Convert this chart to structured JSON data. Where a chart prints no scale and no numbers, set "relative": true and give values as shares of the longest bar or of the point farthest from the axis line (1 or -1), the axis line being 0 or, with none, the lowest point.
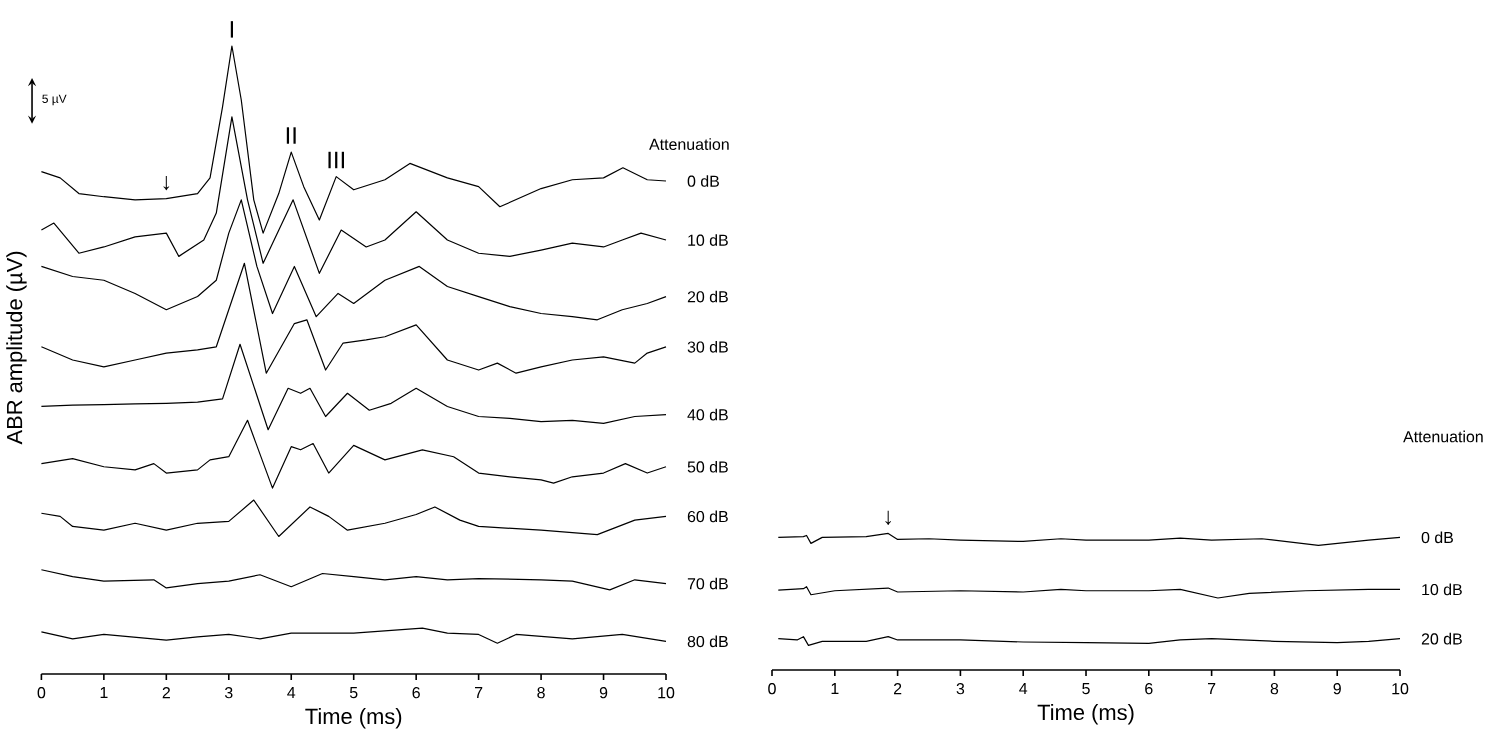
{
  "chart_data": [
    {
      "type": "line",
      "relative": true,
      "xlabel": "Time (ms)",
      "ylabel": "ABR amplitude (µV)",
      "legend_title": "Attenuation",
      "xlim": [
        0,
        10
      ],
      "xticks": [
        0,
        1,
        2,
        3,
        4,
        5,
        6,
        7,
        8,
        9,
        10
      ],
      "tick_labels": "x",
      "annotations": [
        {
          "text": "I",
          "x": 3.05,
          "y": 1.0
        },
        {
          "text": "II",
          "x": 4.0,
          "y": 0.831
        },
        {
          "text": "III",
          "x": 4.72,
          "y": 0.792
        },
        {
          "text": "↓",
          "x": 2.0,
          "y": 0.757
        },
        "5 µV"
      ],
      "series": [
        {
          "name": "0 dB",
          "color": "#000000",
          "x": [
            0,
            0.3,
            0.6,
            1,
            1.5,
            2,
            2.5,
            2.7,
            2.9,
            3.05,
            3.2,
            3.4,
            3.55,
            3.8,
            4.0,
            4.2,
            4.45,
            4.72,
            5.0,
            5.5,
            5.9,
            6.5,
            7.0,
            7.34,
            8.0,
            8.5,
            9.0,
            9.31,
            9.7,
            10
          ],
          "values": [
            0.8,
            0.79,
            0.765,
            0.76,
            0.755,
            0.757,
            0.765,
            0.79,
            0.903,
            1.0,
            0.914,
            0.755,
            0.702,
            0.765,
            0.831,
            0.776,
            0.723,
            0.792,
            0.771,
            0.787,
            0.813,
            0.79,
            0.776,
            0.744,
            0.773,
            0.787,
            0.79,
            0.806,
            0.787,
            0.785
          ]
        },
        {
          "name": "10 dB",
          "color": "#000000",
          "x": [
            0,
            0.2,
            0.6,
            1,
            1.5,
            2,
            2.2,
            2.6,
            2.8,
            3.05,
            3.3,
            3.55,
            4.03,
            4.45,
            4.8,
            5.2,
            5.5,
            6.0,
            6.5,
            7.0,
            7.5,
            8.0,
            8.5,
            9.0,
            9.3,
            9.6,
            10
          ],
          "values": [
            0.707,
            0.718,
            0.67,
            0.68,
            0.696,
            0.702,
            0.665,
            0.691,
            0.734,
            0.887,
            0.755,
            0.654,
            0.755,
            0.638,
            0.707,
            0.68,
            0.691,
            0.736,
            0.691,
            0.67,
            0.665,
            0.675,
            0.686,
            0.68,
            0.691,
            0.702,
            0.691
          ]
        },
        {
          "name": "20 dB",
          "color": "#000000",
          "x": [
            0,
            0.5,
            1,
            1.5,
            2,
            2.5,
            2.8,
            3.0,
            3.2,
            3.45,
            3.7,
            4.05,
            4.4,
            4.75,
            5.0,
            5.5,
            6.05,
            6.5,
            7.0,
            7.5,
            8.0,
            8.5,
            8.9,
            9.3,
            9.7,
            10
          ],
          "values": [
            0.649,
            0.633,
            0.627,
            0.606,
            0.58,
            0.601,
            0.627,
            0.702,
            0.755,
            0.649,
            0.574,
            0.649,
            0.569,
            0.606,
            0.59,
            0.627,
            0.649,
            0.617,
            0.601,
            0.585,
            0.574,
            0.569,
            0.564,
            0.58,
            0.59,
            0.601
          ]
        },
        {
          "name": "30 dB",
          "color": "#000000",
          "x": [
            0,
            0.5,
            1,
            1.5,
            2,
            2.5,
            2.8,
            3.25,
            3.6,
            4.05,
            4.25,
            4.55,
            4.83,
            5.2,
            5.5,
            6.0,
            6.5,
            7.0,
            7.3,
            7.6,
            8,
            8.5,
            9,
            9.5,
            9.7,
            10
          ],
          "values": [
            0.521,
            0.5,
            0.489,
            0.5,
            0.511,
            0.516,
            0.521,
            0.654,
            0.479,
            0.558,
            0.564,
            0.484,
            0.527,
            0.532,
            0.537,
            0.556,
            0.5,
            0.484,
            0.495,
            0.479,
            0.489,
            0.5,
            0.505,
            0.495,
            0.511,
            0.521
          ]
        },
        {
          "name": "40 dB",
          "color": "#000000",
          "x": [
            0,
            0.5,
            1,
            1.5,
            2,
            2.5,
            2.9,
            3.18,
            3.63,
            3.95,
            4.15,
            4.3,
            4.55,
            4.9,
            5.25,
            5.6,
            6.0,
            6.5,
            7.0,
            7.5,
            8,
            8.5,
            9,
            9.5,
            10
          ],
          "values": [
            0.426,
            0.428,
            0.429,
            0.43,
            0.431,
            0.433,
            0.438,
            0.525,
            0.389,
            0.455,
            0.447,
            0.455,
            0.41,
            0.447,
            0.42,
            0.431,
            0.455,
            0.426,
            0.41,
            0.407,
            0.402,
            0.404,
            0.399,
            0.41,
            0.413
          ]
        },
        {
          "name": "50 dB",
          "color": "#000000",
          "x": [
            0,
            0.5,
            1,
            1.5,
            1.8,
            2,
            2.5,
            2.7,
            3.0,
            3.3,
            3.7,
            4.0,
            4.15,
            4.35,
            4.6,
            5.0,
            5.5,
            6.1,
            6.6,
            7.0,
            7.5,
            8.0,
            8.2,
            8.5,
            9.0,
            9.35,
            9.7,
            10
          ],
          "values": [
            0.335,
            0.343,
            0.33,
            0.325,
            0.335,
            0.32,
            0.325,
            0.341,
            0.346,
            0.404,
            0.296,
            0.362,
            0.357,
            0.367,
            0.32,
            0.364,
            0.341,
            0.357,
            0.346,
            0.32,
            0.314,
            0.309,
            0.304,
            0.314,
            0.32,
            0.335,
            0.32,
            0.33
          ]
        },
        {
          "name": "60 dB",
          "color": "#000000",
          "x": [
            0,
            0.3,
            0.5,
            1,
            1.5,
            2,
            2.5,
            3.0,
            3.4,
            3.8,
            4.3,
            4.6,
            4.9,
            5.5,
            6.0,
            6.3,
            6.7,
            7,
            8,
            8.9,
            9.5,
            10
          ],
          "values": [
            0.256,
            0.251,
            0.235,
            0.229,
            0.24,
            0.229,
            0.24,
            0.243,
            0.277,
            0.219,
            0.266,
            0.251,
            0.229,
            0.24,
            0.254,
            0.266,
            0.245,
            0.235,
            0.229,
            0.222,
            0.245,
            0.251
          ]
        },
        {
          "name": "70 dB",
          "color": "#000000",
          "x": [
            0,
            0.5,
            1,
            1.8,
            2,
            2.5,
            3,
            3.5,
            4.0,
            4.5,
            5,
            5.5,
            6,
            6.5,
            7,
            8,
            8.5,
            9.1,
            9.5,
            10
          ],
          "values": [
            0.166,
            0.155,
            0.148,
            0.15,
            0.137,
            0.144,
            0.148,
            0.158,
            0.139,
            0.16,
            0.155,
            0.15,
            0.155,
            0.15,
            0.152,
            0.15,
            0.148,
            0.134,
            0.15,
            0.144
          ]
        },
        {
          "name": "80 dB",
          "color": "#000000",
          "x": [
            0,
            0.5,
            1,
            2,
            2.5,
            3,
            3.5,
            4.0,
            5,
            6.1,
            6.5,
            7,
            7.3,
            7.6,
            8.5,
            9.3,
            10
          ],
          "values": [
            0.067,
            0.056,
            0.063,
            0.054,
            0.059,
            0.063,
            0.056,
            0.065,
            0.065,
            0.073,
            0.065,
            0.063,
            0.049,
            0.063,
            0.056,
            0.063,
            0.052
          ]
        }
      ]
    },
    {
      "type": "line",
      "relative": true,
      "xlabel": "Time (ms)",
      "legend_title": "Attenuation",
      "xlim": [
        0,
        10
      ],
      "xticks": [
        0,
        1,
        2,
        3,
        4,
        5,
        6,
        7,
        8,
        9,
        10
      ],
      "tick_labels": "x",
      "annotations": [
        {
          "text": "↓",
          "x": 1.85,
          "y": 1.0
        }
      ],
      "series": [
        {
          "name": "0 dB",
          "color": "#000000",
          "x": [
            0.1,
            0.5,
            0.55,
            0.62,
            0.8,
            1.5,
            1.85,
            2.0,
            2.5,
            3,
            4,
            4.6,
            5,
            6,
            6.5,
            7,
            7.8,
            8.7,
            9.5,
            10
          ],
          "values": [
            0.971,
            0.976,
            0.985,
            0.927,
            0.971,
            0.976,
            1.0,
            0.956,
            0.961,
            0.951,
            0.941,
            0.961,
            0.951,
            0.951,
            0.966,
            0.951,
            0.961,
            0.912,
            0.951,
            0.971
          ]
        },
        {
          "name": "10 dB",
          "color": "#000000",
          "x": [
            0.1,
            0.5,
            0.55,
            0.62,
            1,
            1.85,
            2,
            3,
            4,
            4.6,
            5,
            6,
            6.5,
            7.1,
            7.6,
            8.5,
            9.5,
            10
          ],
          "values": [
            0.585,
            0.595,
            0.61,
            0.551,
            0.58,
            0.6,
            0.571,
            0.58,
            0.571,
            0.59,
            0.58,
            0.58,
            0.59,
            0.527,
            0.561,
            0.58,
            0.59,
            0.59
          ]
        },
        {
          "name": "20 dB",
          "color": "#000000",
          "x": [
            0.1,
            0.4,
            0.5,
            0.58,
            0.8,
            1.5,
            1.85,
            2,
            3,
            4,
            5,
            6,
            6.5,
            7,
            8,
            9,
            9.5,
            10
          ],
          "values": [
            0.229,
            0.22,
            0.244,
            0.18,
            0.21,
            0.21,
            0.244,
            0.22,
            0.22,
            0.205,
            0.2,
            0.195,
            0.22,
            0.229,
            0.21,
            0.2,
            0.21,
            0.229
          ]
        }
      ]
    }
  ]
}
